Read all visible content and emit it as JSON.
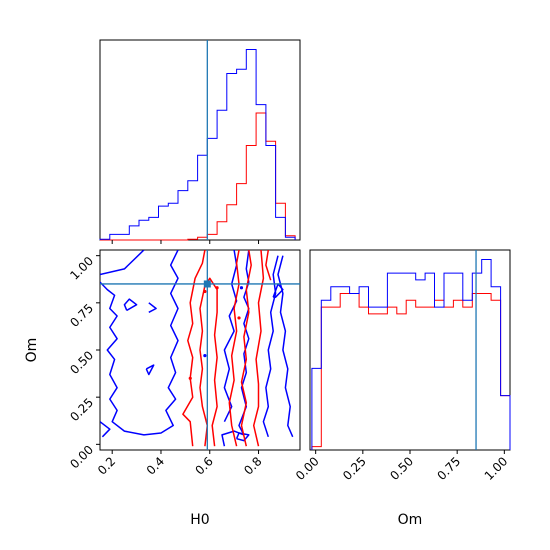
{
  "colors": {
    "posterior_a": "#ff0000",
    "posterior_b": "#0000ff",
    "truth": "#1f77b4",
    "frame": "#000000"
  },
  "chart_data": {
    "type": "corner",
    "parameters": [
      "H0",
      "Om"
    ],
    "xlabel_h0": "H0",
    "xlabel_om": "Om",
    "ylabel_om": "Om",
    "h0_range": [
      0.15,
      0.97
    ],
    "om_range": [
      -0.03,
      1.03
    ],
    "h0_ticks": [
      0.2,
      0.4,
      0.6,
      0.8
    ],
    "h0_tick_labels": [
      "0.2",
      "0.4",
      "0.6",
      "0.8"
    ],
    "om_ticks": [
      0.0,
      0.25,
      0.5,
      0.75,
      1.0
    ],
    "om_tick_labels": [
      "0.00",
      "0.25",
      "0.50",
      "0.75",
      "1.00"
    ],
    "truth": {
      "H0": 0.59,
      "Om": 0.85
    },
    "hist_h0": {
      "edges": [
        0.15,
        0.19,
        0.23,
        0.27,
        0.31,
        0.35,
        0.39,
        0.43,
        0.47,
        0.51,
        0.55,
        0.59,
        0.63,
        0.67,
        0.71,
        0.75,
        0.79,
        0.83,
        0.87,
        0.91,
        0.95
      ],
      "series": [
        {
          "color": "red",
          "counts": [
            0,
            0,
            0,
            0,
            0,
            0,
            0,
            0,
            0,
            0.5,
            2,
            4,
            13,
            25,
            40,
            67,
            90,
            70,
            26,
            3
          ]
        },
        {
          "color": "blue",
          "counts": [
            0.5,
            4,
            4,
            10,
            14,
            16,
            24,
            26,
            35,
            42,
            60,
            72,
            92,
            118,
            121,
            135,
            96,
            67,
            16,
            2
          ]
        }
      ]
    },
    "hist_om": {
      "edges": [
        -0.02,
        0.03,
        0.08,
        0.13,
        0.18,
        0.23,
        0.28,
        0.33,
        0.38,
        0.43,
        0.48,
        0.53,
        0.58,
        0.63,
        0.68,
        0.73,
        0.78,
        0.83,
        0.88,
        0.93,
        0.98,
        1.03
      ],
      "series": [
        {
          "color": "red",
          "counts": [
            0.5,
            21,
            21,
            23,
            23,
            21,
            20,
            20,
            21,
            20,
            22,
            21,
            21,
            22,
            21,
            22,
            21,
            23,
            23,
            22,
            8
          ]
        },
        {
          "color": "blue",
          "counts": [
            12,
            22,
            24,
            24,
            23,
            24,
            21,
            21,
            26,
            26,
            26,
            25,
            26,
            21,
            26,
            26,
            22,
            26,
            28,
            24,
            8
          ]
        }
      ]
    },
    "contours_2d": {
      "x_param": "H0",
      "y_param": "Om",
      "red": [
        [
          [
            0.58,
            -0.01
          ],
          [
            0.59,
            0.1
          ],
          [
            0.57,
            0.2
          ],
          [
            0.56,
            0.3
          ],
          [
            0.57,
            0.4
          ],
          [
            0.56,
            0.5
          ],
          [
            0.57,
            0.6
          ],
          [
            0.56,
            0.72
          ],
          [
            0.58,
            0.84
          ],
          [
            0.6,
            0.88
          ],
          [
            0.63,
            0.82
          ],
          [
            0.63,
            0.7
          ],
          [
            0.62,
            0.58
          ],
          [
            0.63,
            0.46
          ],
          [
            0.62,
            0.34
          ],
          [
            0.63,
            0.2
          ],
          [
            0.61,
            0.1
          ],
          [
            0.62,
            -0.01
          ]
        ],
        [
          [
            0.53,
            -0.01
          ],
          [
            0.52,
            0.12
          ],
          [
            0.49,
            0.16
          ],
          [
            0.53,
            0.25
          ],
          [
            0.52,
            0.35
          ],
          [
            0.53,
            0.46
          ],
          [
            0.51,
            0.55
          ],
          [
            0.53,
            0.64
          ],
          [
            0.52,
            0.75
          ],
          [
            0.54,
            0.88
          ],
          [
            0.57,
            0.96
          ],
          [
            0.58,
            1.03
          ]
        ],
        [
          [
            0.71,
            -0.01
          ],
          [
            0.69,
            0.1
          ],
          [
            0.68,
            0.22
          ],
          [
            0.7,
            0.34
          ],
          [
            0.69,
            0.47
          ],
          [
            0.71,
            0.6
          ],
          [
            0.7,
            0.72
          ],
          [
            0.72,
            0.85
          ],
          [
            0.71,
            0.96
          ],
          [
            0.72,
            1.03
          ]
        ],
        [
          [
            0.75,
            -0.01
          ],
          [
            0.73,
            0.1
          ],
          [
            0.75,
            0.22
          ],
          [
            0.73,
            0.33
          ],
          [
            0.75,
            0.45
          ],
          [
            0.74,
            0.57
          ],
          [
            0.76,
            0.7
          ],
          [
            0.75,
            0.82
          ],
          [
            0.77,
            0.95
          ],
          [
            0.76,
            1.03
          ]
        ],
        [
          [
            0.8,
            -0.01
          ],
          [
            0.78,
            0.1
          ],
          [
            0.8,
            0.2
          ],
          [
            0.8,
            0.32
          ],
          [
            0.79,
            0.45
          ],
          [
            0.81,
            0.6
          ],
          [
            0.8,
            0.75
          ],
          [
            0.82,
            0.88
          ],
          [
            0.81,
            1.03
          ]
        ],
        [
          [
            0.84,
            1.03
          ],
          [
            0.83,
            0.95
          ],
          [
            0.85,
            0.87
          ]
        ]
      ],
      "blue": [
        [
          [
            0.16,
            0.04
          ],
          [
            0.19,
            0.08
          ],
          [
            0.15,
            0.12
          ]
        ],
        [
          [
            0.15,
            0.9
          ],
          [
            0.25,
            0.93
          ],
          [
            0.33,
            1.03
          ]
        ],
        [
          [
            0.15,
            0.86
          ],
          [
            0.18,
            0.82
          ],
          [
            0.21,
            0.79
          ],
          [
            0.19,
            0.72
          ],
          [
            0.22,
            0.68
          ],
          [
            0.19,
            0.62
          ],
          [
            0.22,
            0.56
          ],
          [
            0.18,
            0.5
          ],
          [
            0.21,
            0.45
          ],
          [
            0.19,
            0.37
          ],
          [
            0.22,
            0.3
          ],
          [
            0.19,
            0.24
          ],
          [
            0.22,
            0.18
          ],
          [
            0.2,
            0.12
          ],
          [
            0.25,
            0.07
          ],
          [
            0.33,
            0.05
          ],
          [
            0.4,
            0.06
          ],
          [
            0.45,
            0.1
          ],
          [
            0.42,
            0.18
          ],
          [
            0.46,
            0.24
          ],
          [
            0.43,
            0.3
          ],
          [
            0.46,
            0.38
          ],
          [
            0.44,
            0.46
          ],
          [
            0.47,
            0.55
          ],
          [
            0.44,
            0.63
          ],
          [
            0.47,
            0.72
          ],
          [
            0.44,
            0.8
          ],
          [
            0.47,
            0.88
          ],
          [
            0.44,
            0.95
          ],
          [
            0.47,
            1.03
          ]
        ],
        [
          [
            0.26,
            0.71
          ],
          [
            0.3,
            0.74
          ],
          [
            0.27,
            0.77
          ],
          [
            0.25,
            0.74
          ],
          [
            0.26,
            0.71
          ]
        ],
        [
          [
            0.35,
            0.75
          ],
          [
            0.38,
            0.72
          ],
          [
            0.35,
            0.7
          ]
        ],
        [
          [
            0.34,
            0.4
          ],
          [
            0.37,
            0.42
          ],
          [
            0.35,
            0.37
          ],
          [
            0.34,
            0.4
          ]
        ],
        [
          [
            0.66,
            -0.01
          ],
          [
            0.65,
            0.05
          ],
          [
            0.7,
            0.07
          ],
          [
            0.74,
            0.05
          ],
          [
            0.72,
            0.1
          ],
          [
            0.75,
            0.2
          ],
          [
            0.73,
            0.3
          ],
          [
            0.75,
            0.38
          ],
          [
            0.74,
            0.48
          ],
          [
            0.76,
            0.56
          ],
          [
            0.74,
            0.64
          ],
          [
            0.76,
            0.72
          ],
          [
            0.74,
            0.78
          ],
          [
            0.76,
            0.86
          ],
          [
            0.75,
            0.93
          ],
          [
            0.76,
            1.03
          ]
        ],
        [
          [
            0.71,
            0.03
          ],
          [
            0.74,
            0.02
          ],
          [
            0.76,
            0.05
          ],
          [
            0.72,
            0.06
          ],
          [
            0.71,
            0.03
          ]
        ],
        [
          [
            0.66,
            0.12
          ],
          [
            0.69,
            0.2
          ],
          [
            0.66,
            0.3
          ],
          [
            0.68,
            0.4
          ],
          [
            0.66,
            0.5
          ],
          [
            0.7,
            0.6
          ],
          [
            0.68,
            0.68
          ],
          [
            0.71,
            0.76
          ],
          [
            0.69,
            0.85
          ],
          [
            0.71,
            0.95
          ],
          [
            0.7,
            1.03
          ]
        ],
        [
          [
            0.86,
            0.78
          ],
          [
            0.88,
            0.85
          ],
          [
            0.9,
            0.82
          ],
          [
            0.87,
            0.78
          ],
          [
            0.86,
            0.78
          ]
        ],
        [
          [
            0.9,
            1.0
          ],
          [
            0.88,
            0.9
          ],
          [
            0.9,
            0.8
          ],
          [
            0.89,
            0.7
          ],
          [
            0.91,
            0.6
          ],
          [
            0.9,
            0.5
          ],
          [
            0.92,
            0.4
          ],
          [
            0.91,
            0.3
          ],
          [
            0.93,
            0.2
          ],
          [
            0.92,
            0.1
          ],
          [
            0.94,
            0.04
          ]
        ],
        [
          [
            0.84,
            0.04
          ],
          [
            0.82,
            0.12
          ],
          [
            0.84,
            0.2
          ],
          [
            0.83,
            0.3
          ],
          [
            0.85,
            0.4
          ],
          [
            0.84,
            0.5
          ],
          [
            0.86,
            0.6
          ],
          [
            0.85,
            0.7
          ],
          [
            0.87,
            0.8
          ],
          [
            0.86,
            0.9
          ],
          [
            0.88,
            1.0
          ]
        ]
      ],
      "points_red": [
        [
          0.58,
          0.81
        ],
        [
          0.63,
          0.83
        ],
        [
          0.72,
          0.67
        ],
        [
          0.52,
          0.35
        ]
      ],
      "points_blue": [
        [
          0.58,
          0.47
        ],
        [
          0.73,
          0.83
        ]
      ]
    }
  }
}
